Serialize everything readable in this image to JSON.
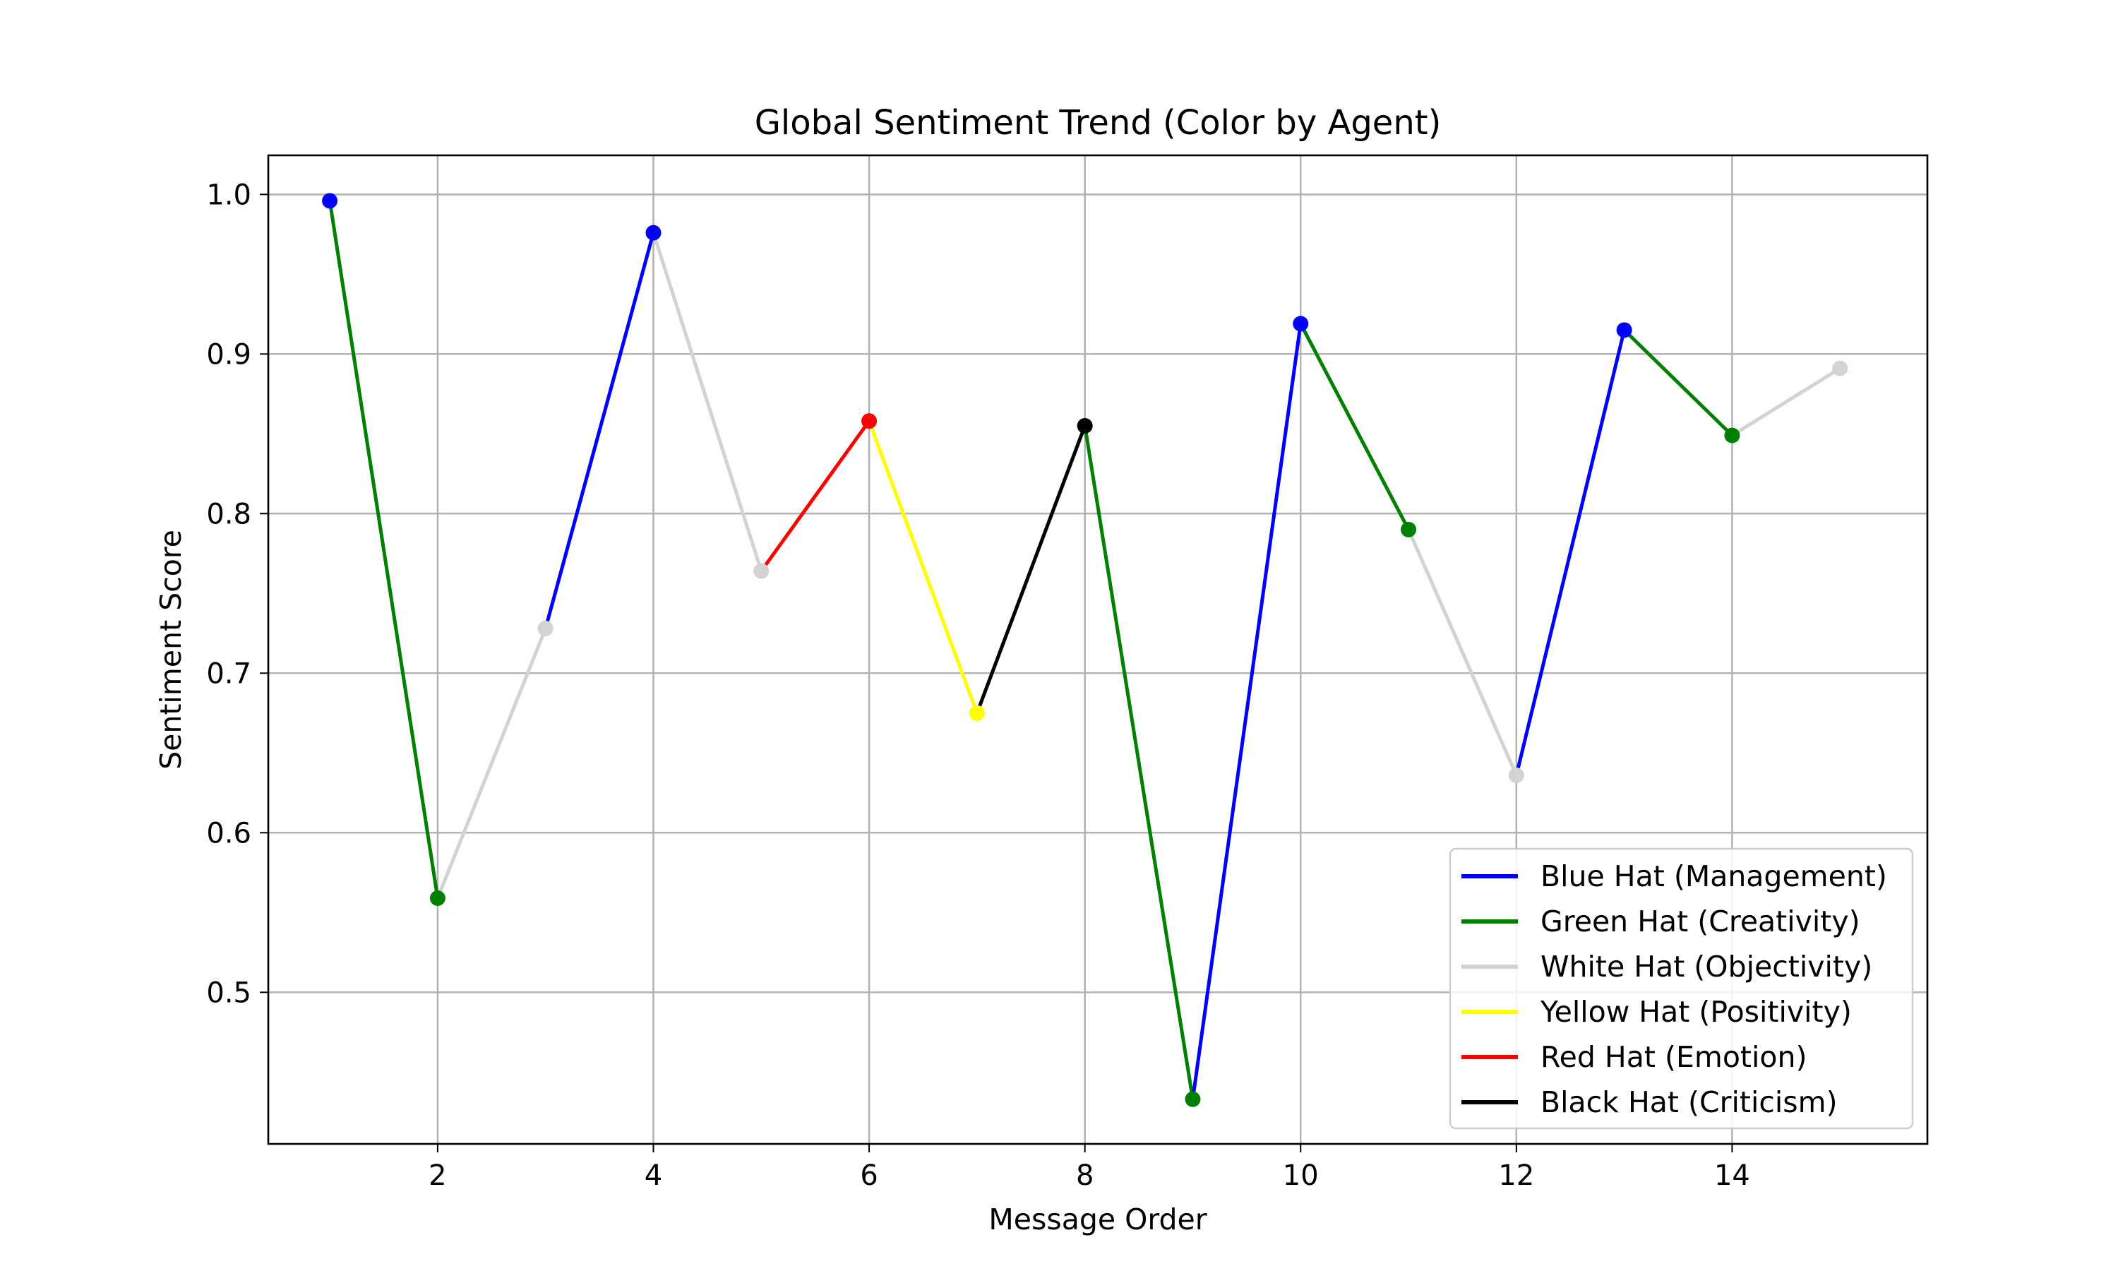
{
  "chart_data": {
    "type": "line",
    "title": "Global Sentiment Trend (Color by Agent)",
    "xlabel": "Message Order",
    "ylabel": "Sentiment Score",
    "xlim": [
      0.43,
      15.81
    ],
    "ylim": [
      0.405,
      1.0245
    ],
    "xticks": [
      2,
      4,
      6,
      8,
      10,
      12,
      14
    ],
    "yticks": [
      0.5,
      0.6,
      0.7,
      0.8,
      0.9,
      1.0
    ],
    "xtick_labels": [
      "2",
      "4",
      "6",
      "8",
      "10",
      "12",
      "14"
    ],
    "ytick_labels": [
      "0.5",
      "0.6",
      "0.7",
      "0.8",
      "0.9",
      "1.0"
    ],
    "grid": true,
    "legend_position": "lower-right",
    "agents": [
      {
        "key": "blue",
        "name": "Blue Hat (Management)",
        "color": "#0000ff"
      },
      {
        "key": "green",
        "name": "Green Hat (Creativity)",
        "color": "#008000"
      },
      {
        "key": "white",
        "name": "White Hat (Objectivity)",
        "color": "#d3d3d3"
      },
      {
        "key": "yellow",
        "name": "Yellow Hat (Positivity)",
        "color": "#ffff00"
      },
      {
        "key": "red",
        "name": "Red Hat (Emotion)",
        "color": "#ff0000"
      },
      {
        "key": "black",
        "name": "Black Hat (Criticism)",
        "color": "#000000"
      }
    ],
    "points": [
      {
        "x": 1,
        "y": 0.996,
        "agent": "blue"
      },
      {
        "x": 2,
        "y": 0.559,
        "agent": "green"
      },
      {
        "x": 3,
        "y": 0.728,
        "agent": "white"
      },
      {
        "x": 4,
        "y": 0.976,
        "agent": "blue"
      },
      {
        "x": 5,
        "y": 0.764,
        "agent": "white"
      },
      {
        "x": 6,
        "y": 0.858,
        "agent": "red"
      },
      {
        "x": 7,
        "y": 0.675,
        "agent": "yellow"
      },
      {
        "x": 8,
        "y": 0.855,
        "agent": "black"
      },
      {
        "x": 9,
        "y": 0.433,
        "agent": "green"
      },
      {
        "x": 10,
        "y": 0.919,
        "agent": "blue"
      },
      {
        "x": 11,
        "y": 0.79,
        "agent": "green"
      },
      {
        "x": 12,
        "y": 0.636,
        "agent": "white"
      },
      {
        "x": 13,
        "y": 0.915,
        "agent": "blue"
      },
      {
        "x": 14,
        "y": 0.849,
        "agent": "green"
      },
      {
        "x": 15,
        "y": 0.891,
        "agent": "white"
      }
    ]
  }
}
